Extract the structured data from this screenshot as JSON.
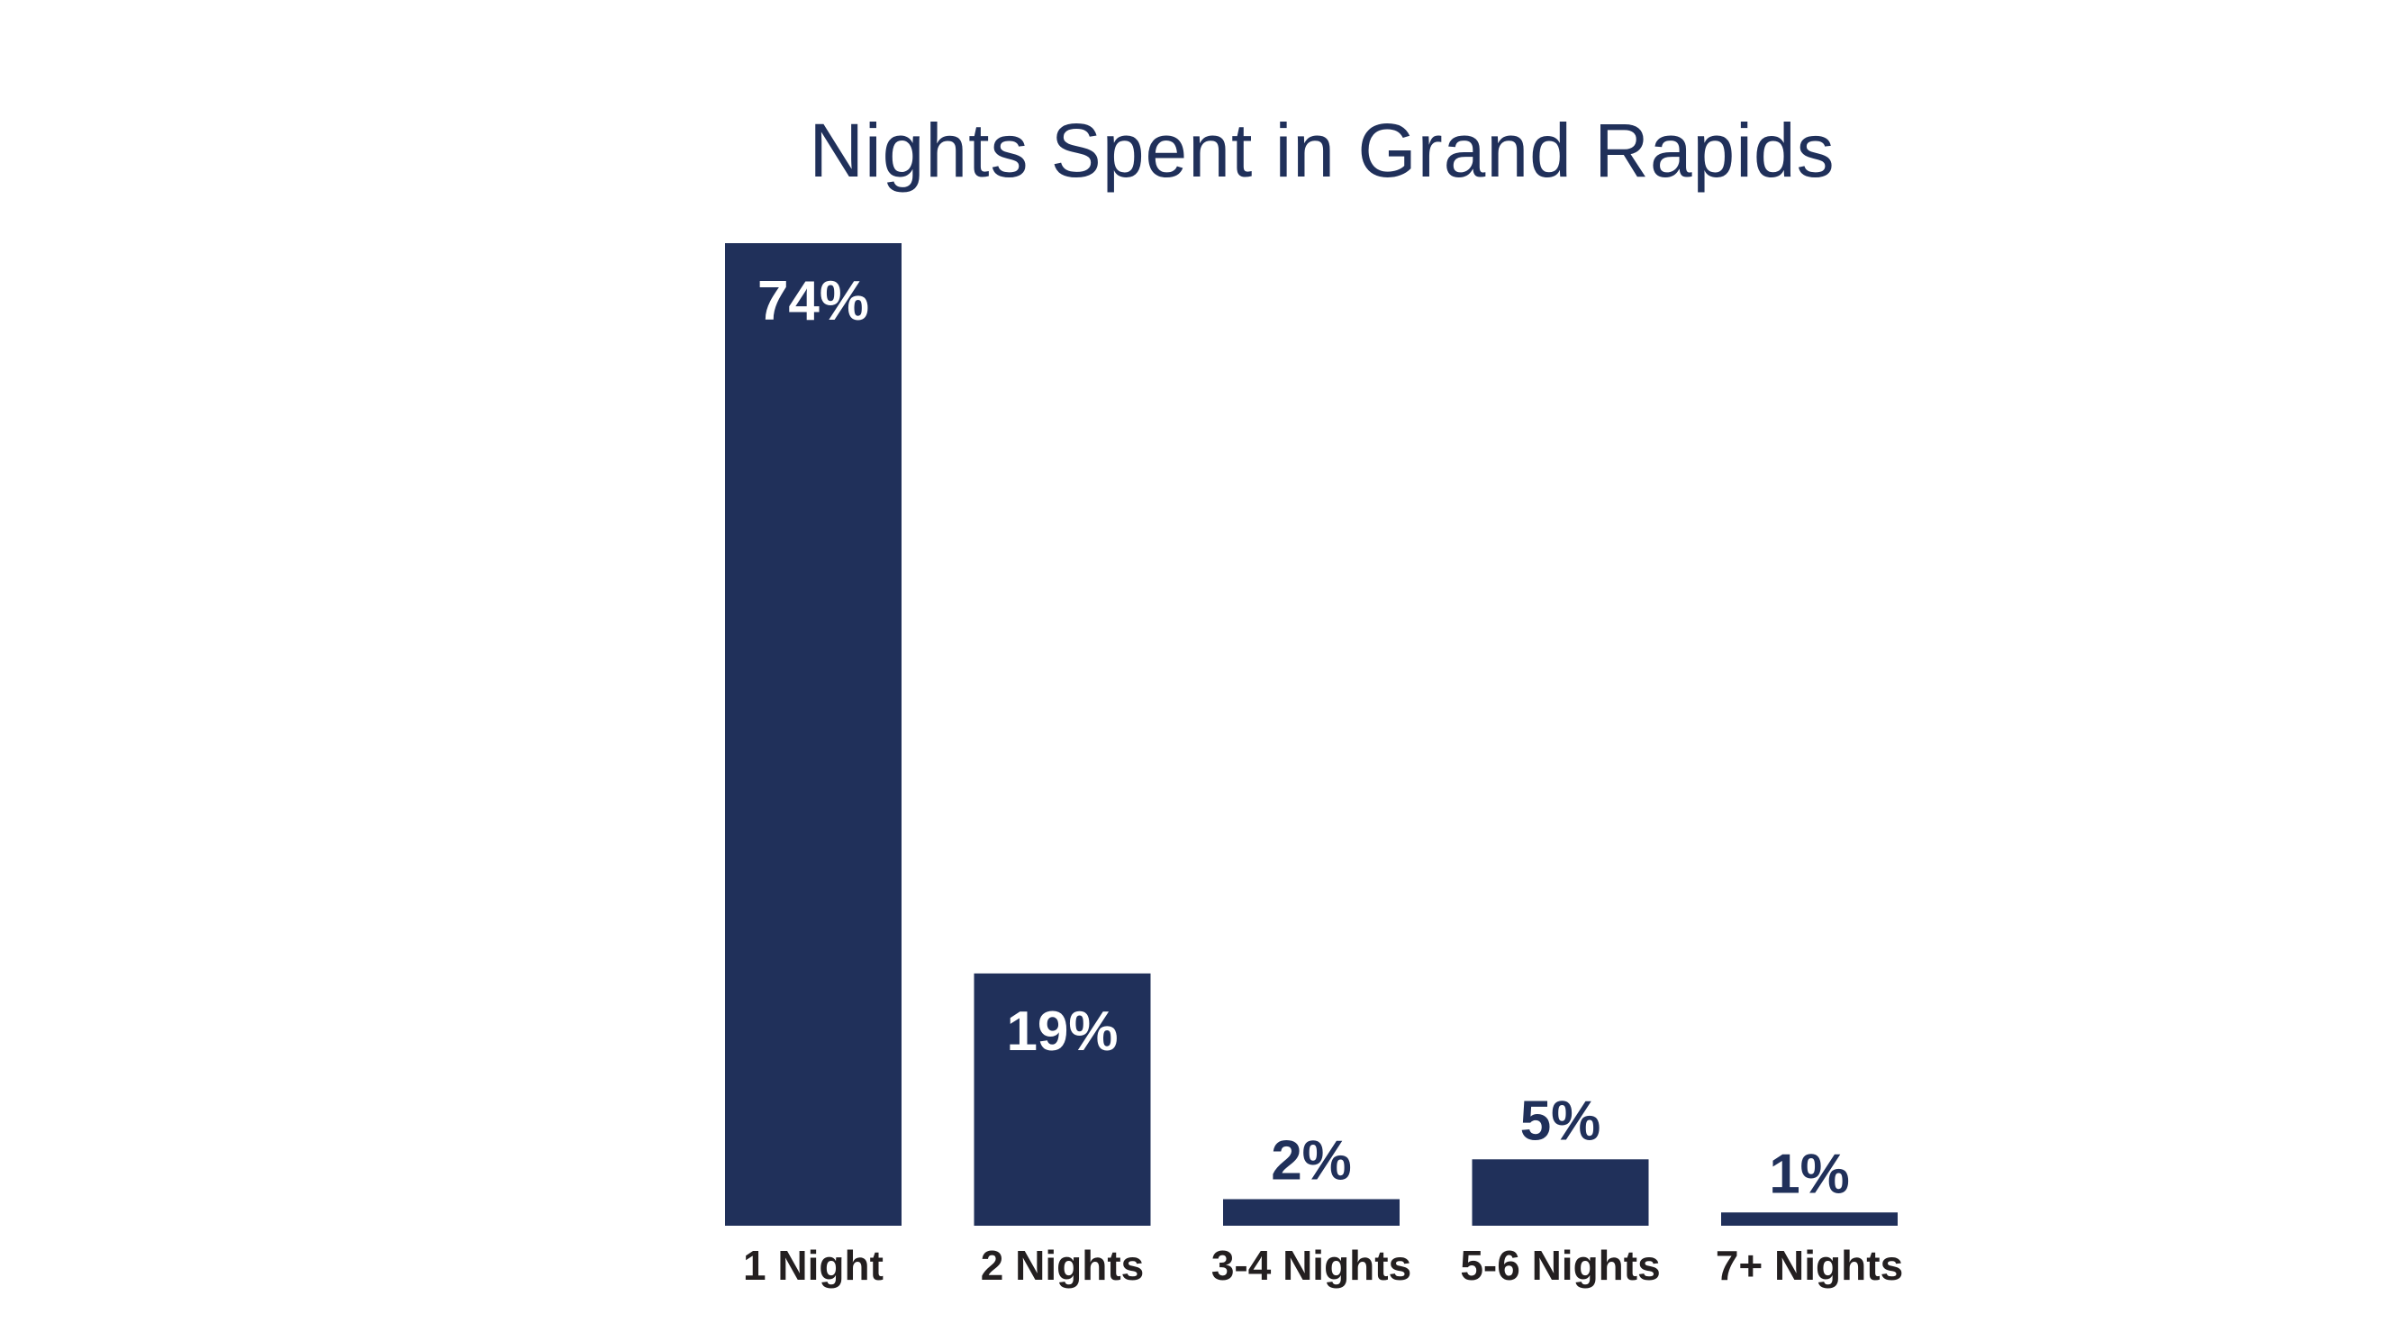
{
  "colors": {
    "bar": "#20305a",
    "title": "#20305a",
    "label_inside": "#ffffff",
    "label_outside": "#20305a",
    "category": "#231f20"
  },
  "chart_data": {
    "type": "bar",
    "title": "Nights Spent in Grand Rapids",
    "categories": [
      "1 Night",
      "2 Nights",
      "3-4 Nights",
      "5-6 Nights",
      "7+ Nights"
    ],
    "values": [
      74,
      19,
      2,
      5,
      1
    ],
    "value_labels": [
      "74%",
      "19%",
      "2%",
      "5%",
      "1%"
    ],
    "unit": "%",
    "ylim": [
      0,
      74
    ],
    "grid": false,
    "legend": "none"
  }
}
